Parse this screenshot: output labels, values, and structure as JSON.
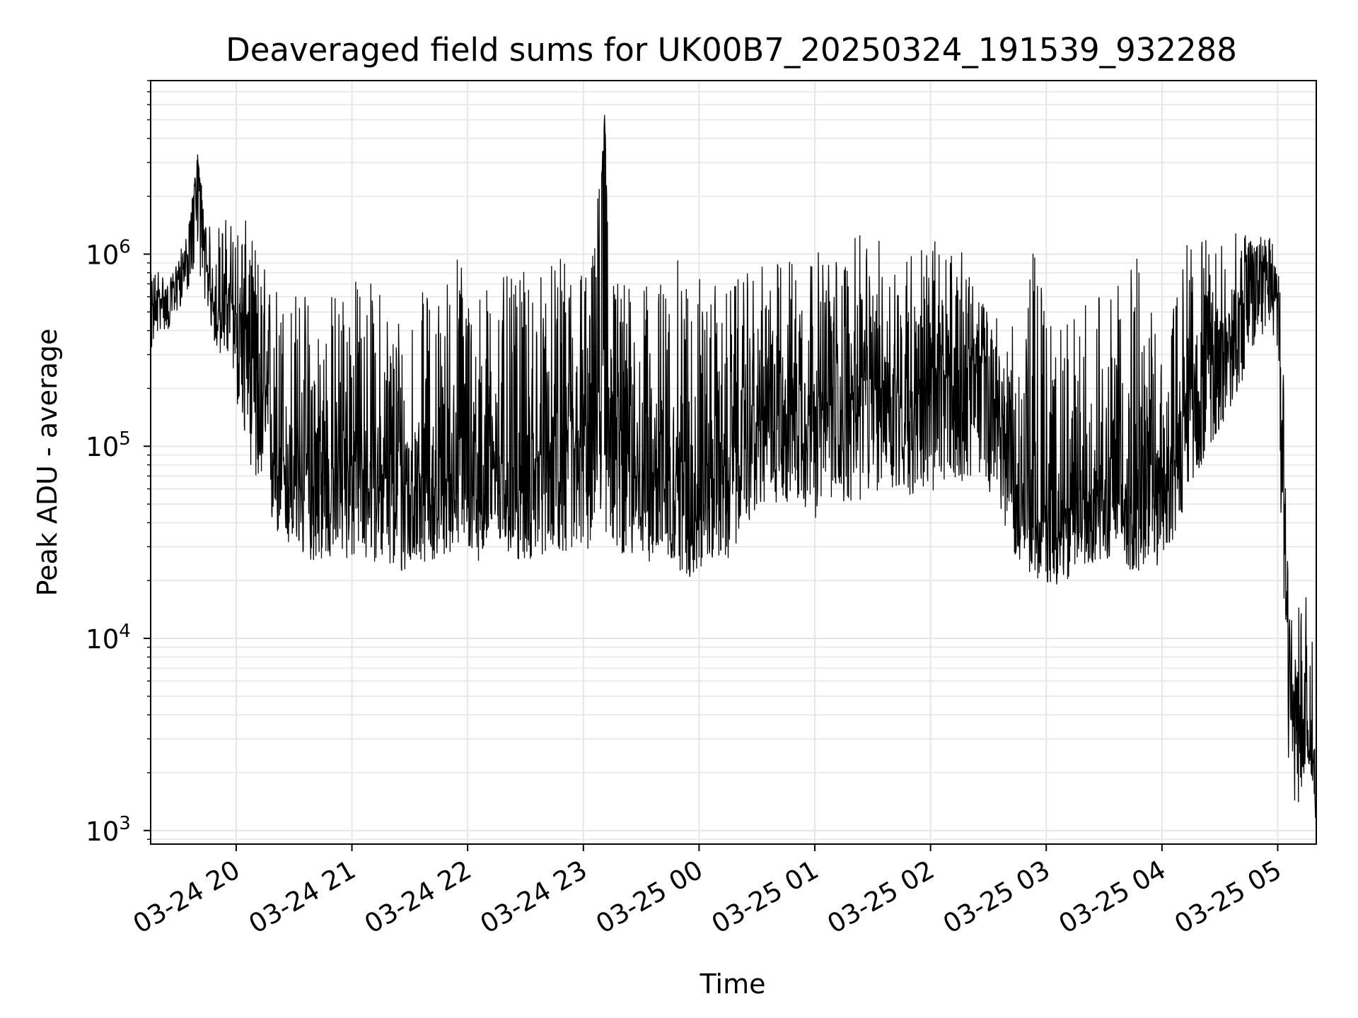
{
  "chart_data": {
    "type": "line",
    "title": "Deaveraged field sums for UK00B7_20250324_191539_932288",
    "xlabel": "Time",
    "ylabel": "Peak ADU - average",
    "yscale": "log",
    "ylim": [
      850,
      8000000
    ],
    "xlim": [
      "2025-03-24 19:15:39",
      "2025-03-25 05:20:00"
    ],
    "grid": true,
    "line_color": "#000000",
    "x_ticks": [
      {
        "value": "2025-03-24 20:00",
        "label": "03-24 20"
      },
      {
        "value": "2025-03-24 21:00",
        "label": "03-24 21"
      },
      {
        "value": "2025-03-24 22:00",
        "label": "03-24 22"
      },
      {
        "value": "2025-03-24 23:00",
        "label": "03-24 23"
      },
      {
        "value": "2025-03-25 00:00",
        "label": "03-25 00"
      },
      {
        "value": "2025-03-25 01:00",
        "label": "03-25 01"
      },
      {
        "value": "2025-03-25 02:00",
        "label": "03-25 02"
      },
      {
        "value": "2025-03-25 03:00",
        "label": "03-25 03"
      },
      {
        "value": "2025-03-25 04:00",
        "label": "03-25 04"
      },
      {
        "value": "2025-03-25 05:00",
        "label": "03-25 05"
      }
    ],
    "y_ticks": [
      {
        "value": 1000,
        "base": "10",
        "exp": "3"
      },
      {
        "value": 10000,
        "base": "10",
        "exp": "4"
      },
      {
        "value": 100000,
        "base": "10",
        "exp": "5"
      },
      {
        "value": 1000000,
        "base": "10",
        "exp": "6"
      }
    ],
    "series": [
      {
        "name": "",
        "x": [
          "2025-03-24 19:15:39",
          "2025-03-24 19:20",
          "2025-03-24 19:25",
          "2025-03-24 19:30",
          "2025-03-24 19:35",
          "2025-03-24 19:40",
          "2025-03-24 19:45",
          "2025-03-24 19:50",
          "2025-03-24 19:55",
          "2025-03-24 20:05",
          "2025-03-24 20:15",
          "2025-03-24 20:25",
          "2025-03-24 20:35",
          "2025-03-24 20:45",
          "2025-03-24 20:55",
          "2025-03-24 21:05",
          "2025-03-24 21:15",
          "2025-03-24 21:25",
          "2025-03-24 21:35",
          "2025-03-24 21:45",
          "2025-03-24 21:55",
          "2025-03-24 22:05",
          "2025-03-24 22:15",
          "2025-03-24 22:25",
          "2025-03-24 22:35",
          "2025-03-24 22:45",
          "2025-03-24 22:55",
          "2025-03-24 23:05",
          "2025-03-24 23:11",
          "2025-03-24 23:15",
          "2025-03-24 23:25",
          "2025-03-24 23:35",
          "2025-03-24 23:45",
          "2025-03-24 23:55",
          "2025-03-25 00:05",
          "2025-03-25 00:15",
          "2025-03-25 00:25",
          "2025-03-25 00:35",
          "2025-03-25 00:45",
          "2025-03-25 00:55",
          "2025-03-25 01:05",
          "2025-03-25 01:15",
          "2025-03-25 01:25",
          "2025-03-25 01:35",
          "2025-03-25 01:45",
          "2025-03-25 01:55",
          "2025-03-25 02:05",
          "2025-03-25 02:15",
          "2025-03-25 02:25",
          "2025-03-25 02:35",
          "2025-03-25 02:45",
          "2025-03-25 02:55",
          "2025-03-25 03:05",
          "2025-03-25 03:15",
          "2025-03-25 03:25",
          "2025-03-25 03:35",
          "2025-03-25 03:45",
          "2025-03-25 03:55",
          "2025-03-25 04:05",
          "2025-03-25 04:15",
          "2025-03-25 04:25",
          "2025-03-25 04:35",
          "2025-03-25 04:45",
          "2025-03-25 04:55",
          "2025-03-25 05:00",
          "2025-03-25 05:03",
          "2025-03-25 05:06",
          "2025-03-25 05:10",
          "2025-03-25 05:14",
          "2025-03-25 05:18",
          "2025-03-25 05:20"
        ],
        "y": [
          500000,
          600000,
          550000,
          800000,
          1000000,
          3300000,
          700000,
          500000,
          600000,
          400000,
          150000,
          80000,
          70000,
          60000,
          90000,
          80000,
          70000,
          60000,
          70000,
          60000,
          80000,
          70000,
          90000,
          60000,
          80000,
          100000,
          90000,
          100000,
          5300000,
          150000,
          80000,
          70000,
          80000,
          60000,
          70000,
          80000,
          100000,
          150000,
          200000,
          180000,
          150000,
          180000,
          200000,
          220000,
          180000,
          200000,
          220000,
          250000,
          300000,
          150000,
          60000,
          40000,
          35000,
          45000,
          60000,
          70000,
          50000,
          60000,
          80000,
          200000,
          300000,
          400000,
          700000,
          1000000,
          800000,
          100000,
          6000,
          3000,
          4000,
          2500,
          1200
        ],
        "envelope_low": [
          300000,
          400000,
          400000,
          500000,
          650000,
          900000,
          500000,
          300000,
          300000,
          100000,
          40000,
          30000,
          25000,
          25000,
          25000,
          25000,
          25000,
          20000,
          25000,
          25000,
          30000,
          25000,
          30000,
          25000,
          25000,
          30000,
          25000,
          30000,
          30000,
          30000,
          25000,
          25000,
          25000,
          20000,
          25000,
          25000,
          40000,
          50000,
          50000,
          45000,
          40000,
          50000,
          50000,
          60000,
          55000,
          55000,
          55000,
          65000,
          70000,
          50000,
          25000,
          20000,
          18000,
          22000,
          25000,
          25000,
          22000,
          22000,
          30000,
          60000,
          100000,
          150000,
          250000,
          450000,
          300000,
          10000,
          1500,
          1200,
          2000,
          1500,
          1000
        ],
        "envelope_high": [
          800000,
          900000,
          700000,
          1000000,
          1300000,
          3300000,
          1400000,
          1500000,
          1600000,
          1500000,
          900000,
          700000,
          700000,
          600000,
          800000,
          800000,
          700000,
          600000,
          650000,
          700000,
          1200000,
          700000,
          800000,
          750000,
          900000,
          900000,
          1100000,
          1100000,
          5300000,
          900000,
          700000,
          700000,
          850000,
          1100000,
          700000,
          700000,
          800000,
          900000,
          1000000,
          1200000,
          1000000,
          1100000,
          1300000,
          1200000,
          1100000,
          1200000,
          1200000,
          1100000,
          600000,
          500000,
          400000,
          1300000,
          400000,
          500000,
          700000,
          600000,
          1200000,
          500000,
          500000,
          1600000,
          1100000,
          1300000,
          1300000,
          1400000,
          1300000,
          300000,
          20000,
          15000,
          18000,
          12000,
          6000
        ]
      }
    ]
  }
}
